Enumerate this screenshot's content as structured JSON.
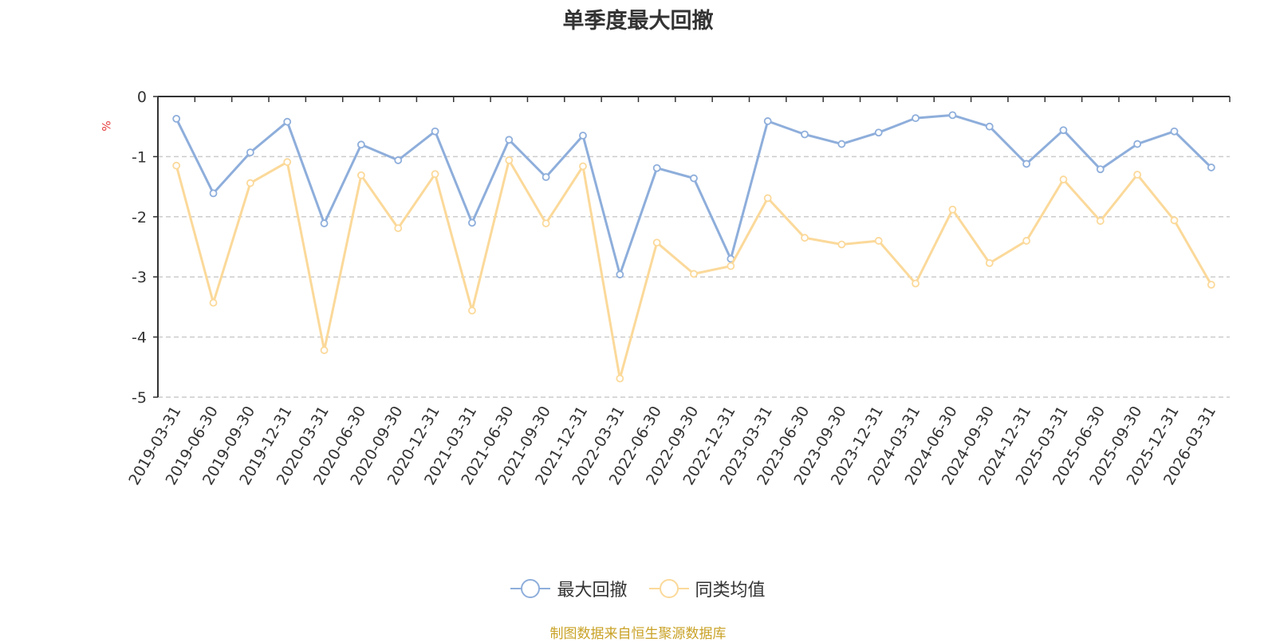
{
  "chart_data": {
    "type": "line",
    "title": "单季度最大回撤",
    "ylabel": "%",
    "ylim": [
      -5,
      0
    ],
    "yticks": [
      "0",
      "-1",
      "-2",
      "-3",
      "-4",
      "-5"
    ],
    "ytick_values": [
      0,
      -1,
      -2,
      -3,
      -4,
      -5
    ],
    "categories": [
      "2019-03-31",
      "2019-06-30",
      "2019-09-30",
      "2019-12-31",
      "2020-03-31",
      "2020-06-30",
      "2020-09-30",
      "2020-12-31",
      "2021-03-31",
      "2021-06-30",
      "2021-09-30",
      "2021-12-31",
      "2022-03-31",
      "2022-06-30",
      "2022-09-30",
      "2022-12-31",
      "2023-03-31",
      "2023-06-30",
      "2023-09-30",
      "2023-12-31",
      "2024-03-31",
      "2024-06-30",
      "2024-09-30",
      "2024-12-31",
      "2025-03-31",
      "2025-06-30",
      "2025-09-30",
      "2025-12-31",
      "2026-03-31"
    ],
    "series": [
      {
        "name": "最大回撤",
        "color": "#8eaedb",
        "values": [
          -0.37,
          -1.61,
          -0.93,
          -0.42,
          -2.11,
          -0.8,
          -1.06,
          -0.58,
          -2.1,
          -0.72,
          -1.34,
          -0.65,
          -2.96,
          -1.19,
          -1.36,
          -2.7,
          -0.41,
          -0.63,
          -0.79,
          -0.6,
          -0.36,
          -0.31,
          -0.5,
          -1.12,
          -0.56,
          -1.21,
          -0.79,
          -0.58,
          -1.18
        ]
      },
      {
        "name": "同类均值",
        "color": "#fbd99a",
        "values": [
          -1.15,
          -3.43,
          -1.44,
          -1.09,
          -4.22,
          -1.31,
          -2.19,
          -1.29,
          -3.56,
          -1.06,
          -2.11,
          -1.16,
          -4.69,
          -2.43,
          -2.95,
          -2.82,
          -1.69,
          -2.35,
          -2.46,
          -2.4,
          -3.11,
          -1.88,
          -2.77,
          -2.4,
          -1.38,
          -2.07,
          -1.3,
          -2.06,
          -3.13
        ]
      }
    ],
    "legend": "bottom-center",
    "grid": true
  },
  "footer": {
    "source": "制图数据来自恒生聚源数据库"
  }
}
